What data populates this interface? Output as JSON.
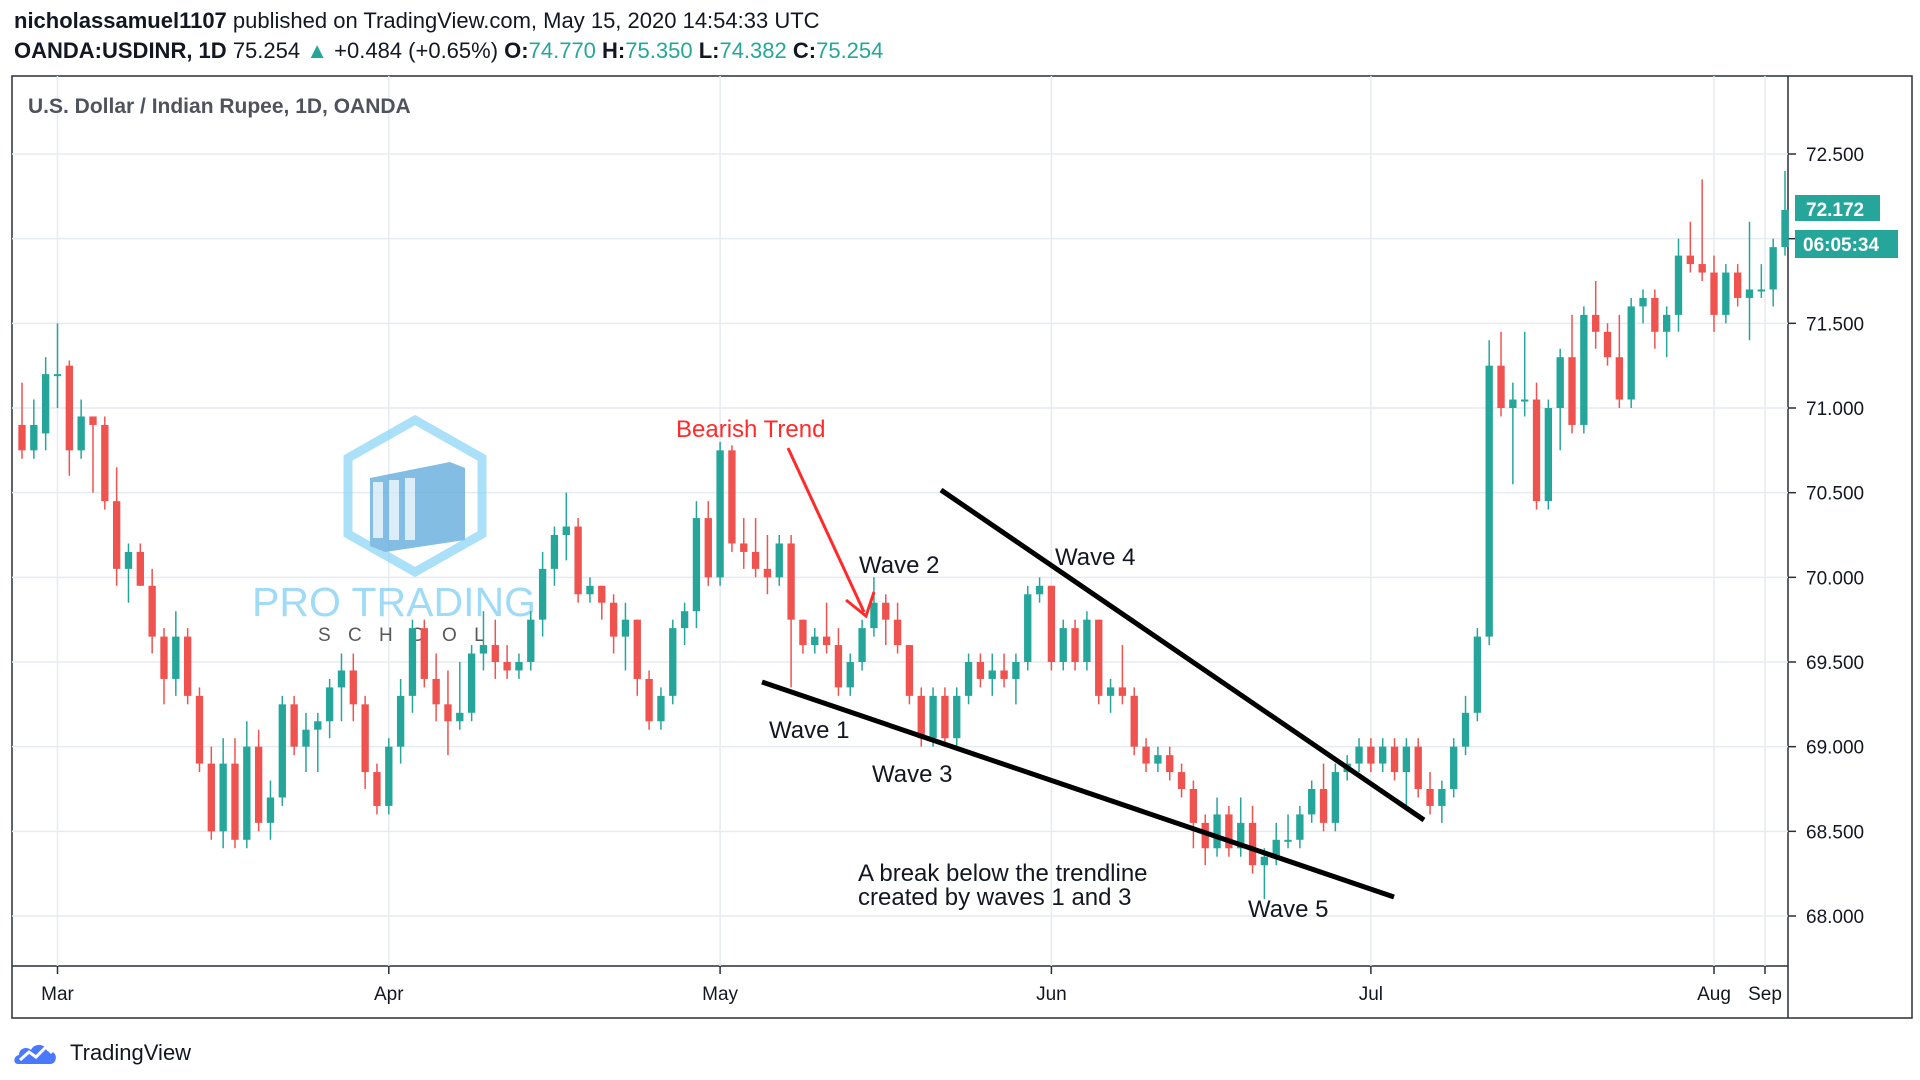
{
  "header": {
    "publisher": "nicholassamuel1107",
    "published_text": "published on TradingView.com, May 15, 2020 14:54:33 UTC",
    "symbol": "OANDA:USDINR, 1D",
    "last": "75.254",
    "change": "+0.484 (+0.65%)",
    "o_label": "O:",
    "o_value": "74.770",
    "h_label": "H:",
    "h_value": "75.350",
    "l_label": "L:",
    "l_value": "74.382",
    "c_label": "C:",
    "c_value": "75.254"
  },
  "colors": {
    "up": "#26a69a",
    "down": "#ef5350",
    "grid": "#e6ebf2",
    "annotation": "#ff2a2a",
    "trendline": "#000000",
    "watermark": "#7fd0f5"
  },
  "watermark": {
    "line1": "PRO TRADING",
    "line2": "S C H O O L"
  },
  "footer": {
    "brand": "TradingView",
    "icon": "tradingview-cloud-icon"
  },
  "chart_data": {
    "type": "candlestick",
    "title": "U.S. Dollar / Indian Rupee, 1D, OANDA",
    "x_tick_labels": [
      "Mar",
      "Apr",
      "May",
      "Jun",
      "Jul",
      "Aug",
      "Sep"
    ],
    "y_tick_labels": [
      "72.500",
      "72.000",
      "71.500",
      "71.000",
      "70.500",
      "70.000",
      "69.500",
      "69.000",
      "68.500",
      "68.000"
    ],
    "ylim": [
      67.7,
      72.95
    ],
    "last_price_label": "72.172",
    "countdown_label": "06:05:34",
    "candles": [
      {
        "o": 70.9,
        "h": 71.15,
        "l": 70.7,
        "c": 70.75
      },
      {
        "o": 70.75,
        "h": 71.05,
        "l": 70.7,
        "c": 70.9
      },
      {
        "o": 70.85,
        "h": 71.3,
        "l": 70.75,
        "c": 71.2
      },
      {
        "o": 71.2,
        "h": 71.5,
        "l": 71.0,
        "c": 71.2
      },
      {
        "o": 71.25,
        "h": 71.28,
        "l": 70.6,
        "c": 70.75
      },
      {
        "o": 70.75,
        "h": 71.05,
        "l": 70.7,
        "c": 70.95
      },
      {
        "o": 70.95,
        "h": 70.95,
        "l": 70.5,
        "c": 70.9
      },
      {
        "o": 70.9,
        "h": 70.95,
        "l": 70.4,
        "c": 70.45
      },
      {
        "o": 70.45,
        "h": 70.65,
        "l": 69.95,
        "c": 70.05
      },
      {
        "o": 70.05,
        "h": 70.2,
        "l": 69.85,
        "c": 70.15
      },
      {
        "o": 70.15,
        "h": 70.2,
        "l": 69.95,
        "c": 69.95
      },
      {
        "o": 69.95,
        "h": 70.05,
        "l": 69.55,
        "c": 69.65
      },
      {
        "o": 69.65,
        "h": 69.7,
        "l": 69.25,
        "c": 69.4
      },
      {
        "o": 69.4,
        "h": 69.8,
        "l": 69.3,
        "c": 69.65
      },
      {
        "o": 69.65,
        "h": 69.7,
        "l": 69.25,
        "c": 69.3
      },
      {
        "o": 69.3,
        "h": 69.35,
        "l": 68.85,
        "c": 68.9
      },
      {
        "o": 68.9,
        "h": 69.0,
        "l": 68.45,
        "c": 68.5
      },
      {
        "o": 68.5,
        "h": 69.05,
        "l": 68.4,
        "c": 68.9
      },
      {
        "o": 68.9,
        "h": 69.05,
        "l": 68.4,
        "c": 68.45
      },
      {
        "o": 68.45,
        "h": 69.15,
        "l": 68.4,
        "c": 69.0
      },
      {
        "o": 69.0,
        "h": 69.1,
        "l": 68.5,
        "c": 68.55
      },
      {
        "o": 68.55,
        "h": 68.8,
        "l": 68.45,
        "c": 68.7
      },
      {
        "o": 68.7,
        "h": 69.3,
        "l": 68.65,
        "c": 69.25
      },
      {
        "o": 69.25,
        "h": 69.3,
        "l": 68.95,
        "c": 69.0
      },
      {
        "o": 69.0,
        "h": 69.2,
        "l": 68.85,
        "c": 69.1
      },
      {
        "o": 69.1,
        "h": 69.2,
        "l": 68.85,
        "c": 69.15
      },
      {
        "o": 69.15,
        "h": 69.4,
        "l": 69.05,
        "c": 69.35
      },
      {
        "o": 69.35,
        "h": 69.55,
        "l": 69.15,
        "c": 69.45
      },
      {
        "o": 69.45,
        "h": 69.55,
        "l": 69.15,
        "c": 69.25
      },
      {
        "o": 69.25,
        "h": 69.3,
        "l": 68.75,
        "c": 68.85
      },
      {
        "o": 68.85,
        "h": 68.9,
        "l": 68.6,
        "c": 68.65
      },
      {
        "o": 68.65,
        "h": 69.05,
        "l": 68.6,
        "c": 69.0
      },
      {
        "o": 69.0,
        "h": 69.4,
        "l": 68.9,
        "c": 69.3
      },
      {
        "o": 69.3,
        "h": 69.75,
        "l": 69.2,
        "c": 69.7
      },
      {
        "o": 69.7,
        "h": 69.75,
        "l": 69.35,
        "c": 69.4
      },
      {
        "o": 69.4,
        "h": 69.55,
        "l": 69.15,
        "c": 69.25
      },
      {
        "o": 69.25,
        "h": 69.45,
        "l": 68.95,
        "c": 69.15
      },
      {
        "o": 69.15,
        "h": 69.5,
        "l": 69.1,
        "c": 69.2
      },
      {
        "o": 69.2,
        "h": 69.6,
        "l": 69.15,
        "c": 69.55
      },
      {
        "o": 69.55,
        "h": 69.8,
        "l": 69.45,
        "c": 69.6
      },
      {
        "o": 69.6,
        "h": 69.75,
        "l": 69.4,
        "c": 69.5
      },
      {
        "o": 69.5,
        "h": 69.6,
        "l": 69.4,
        "c": 69.45
      },
      {
        "o": 69.45,
        "h": 69.55,
        "l": 69.4,
        "c": 69.5
      },
      {
        "o": 69.5,
        "h": 69.8,
        "l": 69.45,
        "c": 69.75
      },
      {
        "o": 69.75,
        "h": 70.15,
        "l": 69.65,
        "c": 70.05
      },
      {
        "o": 70.05,
        "h": 70.3,
        "l": 69.95,
        "c": 70.25
      },
      {
        "o": 70.25,
        "h": 70.5,
        "l": 70.1,
        "c": 70.3
      },
      {
        "o": 70.3,
        "h": 70.35,
        "l": 69.85,
        "c": 69.9
      },
      {
        "o": 69.9,
        "h": 70.0,
        "l": 69.85,
        "c": 69.95
      },
      {
        "o": 69.95,
        "h": 69.95,
        "l": 69.75,
        "c": 69.85
      },
      {
        "o": 69.85,
        "h": 69.9,
        "l": 69.55,
        "c": 69.65
      },
      {
        "o": 69.65,
        "h": 69.85,
        "l": 69.45,
        "c": 69.75
      },
      {
        "o": 69.75,
        "h": 69.75,
        "l": 69.3,
        "c": 69.4
      },
      {
        "o": 69.4,
        "h": 69.45,
        "l": 69.1,
        "c": 69.15
      },
      {
        "o": 69.15,
        "h": 69.35,
        "l": 69.1,
        "c": 69.3
      },
      {
        "o": 69.3,
        "h": 69.75,
        "l": 69.25,
        "c": 69.7
      },
      {
        "o": 69.7,
        "h": 69.85,
        "l": 69.6,
        "c": 69.8
      },
      {
        "o": 69.8,
        "h": 70.45,
        "l": 69.7,
        "c": 70.35
      },
      {
        "o": 70.35,
        "h": 70.45,
        "l": 69.95,
        "c": 70.0
      },
      {
        "o": 70.0,
        "h": 70.8,
        "l": 69.95,
        "c": 70.75
      },
      {
        "o": 70.75,
        "h": 70.78,
        "l": 70.15,
        "c": 70.2
      },
      {
        "o": 70.2,
        "h": 70.35,
        "l": 70.05,
        "c": 70.15
      },
      {
        "o": 70.15,
        "h": 70.35,
        "l": 70.0,
        "c": 70.05
      },
      {
        "o": 70.05,
        "h": 70.25,
        "l": 69.9,
        "c": 70.0
      },
      {
        "o": 70.0,
        "h": 70.25,
        "l": 69.95,
        "c": 70.2
      },
      {
        "o": 70.2,
        "h": 70.25,
        "l": 69.35,
        "c": 69.75
      },
      {
        "o": 69.75,
        "h": 69.75,
        "l": 69.55,
        "c": 69.6
      },
      {
        "o": 69.6,
        "h": 69.7,
        "l": 69.55,
        "c": 69.65
      },
      {
        "o": 69.65,
        "h": 69.85,
        "l": 69.55,
        "c": 69.6
      },
      {
        "o": 69.6,
        "h": 69.7,
        "l": 69.3,
        "c": 69.35
      },
      {
        "o": 69.35,
        "h": 69.55,
        "l": 69.3,
        "c": 69.5
      },
      {
        "o": 69.5,
        "h": 69.75,
        "l": 69.45,
        "c": 69.7
      },
      {
        "o": 69.7,
        "h": 70.0,
        "l": 69.65,
        "c": 69.85
      },
      {
        "o": 69.85,
        "h": 69.9,
        "l": 69.6,
        "c": 69.75
      },
      {
        "o": 69.75,
        "h": 69.85,
        "l": 69.55,
        "c": 69.6
      },
      {
        "o": 69.6,
        "h": 69.6,
        "l": 69.25,
        "c": 69.3
      },
      {
        "o": 69.3,
        "h": 69.35,
        "l": 69.0,
        "c": 69.05
      },
      {
        "o": 69.05,
        "h": 69.35,
        "l": 69.0,
        "c": 69.3
      },
      {
        "o": 69.3,
        "h": 69.35,
        "l": 69.0,
        "c": 69.05
      },
      {
        "o": 69.05,
        "h": 69.35,
        "l": 69.0,
        "c": 69.3
      },
      {
        "o": 69.3,
        "h": 69.55,
        "l": 69.25,
        "c": 69.5
      },
      {
        "o": 69.5,
        "h": 69.55,
        "l": 69.35,
        "c": 69.4
      },
      {
        "o": 69.4,
        "h": 69.55,
        "l": 69.3,
        "c": 69.45
      },
      {
        "o": 69.45,
        "h": 69.55,
        "l": 69.35,
        "c": 69.4
      },
      {
        "o": 69.4,
        "h": 69.55,
        "l": 69.25,
        "c": 69.5
      },
      {
        "o": 69.5,
        "h": 69.95,
        "l": 69.45,
        "c": 69.9
      },
      {
        "o": 69.9,
        "h": 70.0,
        "l": 69.85,
        "c": 69.95
      },
      {
        "o": 69.95,
        "h": 69.95,
        "l": 69.45,
        "c": 69.5
      },
      {
        "o": 69.5,
        "h": 69.75,
        "l": 69.45,
        "c": 69.7
      },
      {
        "o": 69.7,
        "h": 69.75,
        "l": 69.45,
        "c": 69.5
      },
      {
        "o": 69.5,
        "h": 69.8,
        "l": 69.45,
        "c": 69.75
      },
      {
        "o": 69.75,
        "h": 69.75,
        "l": 69.25,
        "c": 69.3
      },
      {
        "o": 69.3,
        "h": 69.4,
        "l": 69.2,
        "c": 69.35
      },
      {
        "o": 69.35,
        "h": 69.6,
        "l": 69.25,
        "c": 69.3
      },
      {
        "o": 69.3,
        "h": 69.35,
        "l": 68.95,
        "c": 69.0
      },
      {
        "o": 69.0,
        "h": 69.05,
        "l": 68.85,
        "c": 68.9
      },
      {
        "o": 68.9,
        "h": 69.0,
        "l": 68.85,
        "c": 68.95
      },
      {
        "o": 68.95,
        "h": 69.0,
        "l": 68.8,
        "c": 68.85
      },
      {
        "o": 68.85,
        "h": 68.9,
        "l": 68.7,
        "c": 68.75
      },
      {
        "o": 68.75,
        "h": 68.8,
        "l": 68.4,
        "c": 68.55
      },
      {
        "o": 68.55,
        "h": 68.6,
        "l": 68.3,
        "c": 68.4
      },
      {
        "o": 68.4,
        "h": 68.7,
        "l": 68.35,
        "c": 68.6
      },
      {
        "o": 68.6,
        "h": 68.65,
        "l": 68.35,
        "c": 68.4
      },
      {
        "o": 68.4,
        "h": 68.7,
        "l": 68.35,
        "c": 68.55
      },
      {
        "o": 68.55,
        "h": 68.65,
        "l": 68.25,
        "c": 68.3
      },
      {
        "o": 68.3,
        "h": 68.4,
        "l": 68.1,
        "c": 68.35
      },
      {
        "o": 68.35,
        "h": 68.55,
        "l": 68.3,
        "c": 68.45
      },
      {
        "o": 68.45,
        "h": 68.6,
        "l": 68.4,
        "c": 68.45
      },
      {
        "o": 68.45,
        "h": 68.65,
        "l": 68.4,
        "c": 68.6
      },
      {
        "o": 68.6,
        "h": 68.8,
        "l": 68.55,
        "c": 68.75
      },
      {
        "o": 68.75,
        "h": 68.9,
        "l": 68.5,
        "c": 68.55
      },
      {
        "o": 68.55,
        "h": 68.9,
        "l": 68.5,
        "c": 68.85
      },
      {
        "o": 68.85,
        "h": 68.95,
        "l": 68.8,
        "c": 68.9
      },
      {
        "o": 68.9,
        "h": 69.05,
        "l": 68.85,
        "c": 69.0
      },
      {
        "o": 69.0,
        "h": 69.05,
        "l": 68.85,
        "c": 68.9
      },
      {
        "o": 68.9,
        "h": 69.05,
        "l": 68.85,
        "c": 69.0
      },
      {
        "o": 69.0,
        "h": 69.05,
        "l": 68.8,
        "c": 68.85
      },
      {
        "o": 68.85,
        "h": 69.05,
        "l": 68.65,
        "c": 69.0
      },
      {
        "o": 69.0,
        "h": 69.05,
        "l": 68.7,
        "c": 68.75
      },
      {
        "o": 68.75,
        "h": 68.85,
        "l": 68.6,
        "c": 68.65
      },
      {
        "o": 68.65,
        "h": 68.8,
        "l": 68.55,
        "c": 68.75
      },
      {
        "o": 68.75,
        "h": 69.05,
        "l": 68.7,
        "c": 69.0
      },
      {
        "o": 69.0,
        "h": 69.3,
        "l": 68.95,
        "c": 69.2
      },
      {
        "o": 69.2,
        "h": 69.7,
        "l": 69.15,
        "c": 69.65
      },
      {
        "o": 69.65,
        "h": 71.4,
        "l": 69.6,
        "c": 71.25
      },
      {
        "o": 71.25,
        "h": 71.45,
        "l": 70.95,
        "c": 71.0
      },
      {
        "o": 71.0,
        "h": 71.15,
        "l": 70.55,
        "c": 71.05
      },
      {
        "o": 71.05,
        "h": 71.45,
        "l": 70.95,
        "c": 71.05
      },
      {
        "o": 71.05,
        "h": 71.15,
        "l": 70.4,
        "c": 70.45
      },
      {
        "o": 70.45,
        "h": 71.05,
        "l": 70.4,
        "c": 71.0
      },
      {
        "o": 71.0,
        "h": 71.35,
        "l": 70.75,
        "c": 71.3
      },
      {
        "o": 71.3,
        "h": 71.55,
        "l": 70.85,
        "c": 70.9
      },
      {
        "o": 70.9,
        "h": 71.6,
        "l": 70.85,
        "c": 71.55
      },
      {
        "o": 71.55,
        "h": 71.75,
        "l": 71.35,
        "c": 71.45
      },
      {
        "o": 71.45,
        "h": 71.5,
        "l": 71.25,
        "c": 71.3
      },
      {
        "o": 71.3,
        "h": 71.55,
        "l": 71.0,
        "c": 71.05
      },
      {
        "o": 71.05,
        "h": 71.65,
        "l": 71.0,
        "c": 71.6
      },
      {
        "o": 71.6,
        "h": 71.7,
        "l": 71.5,
        "c": 71.65
      },
      {
        "o": 71.65,
        "h": 71.7,
        "l": 71.35,
        "c": 71.45
      },
      {
        "o": 71.45,
        "h": 71.6,
        "l": 71.3,
        "c": 71.55
      },
      {
        "o": 71.55,
        "h": 72.0,
        "l": 71.45,
        "c": 71.9
      },
      {
        "o": 71.9,
        "h": 72.1,
        "l": 71.8,
        "c": 71.85
      },
      {
        "o": 71.85,
        "h": 72.35,
        "l": 71.75,
        "c": 71.8
      },
      {
        "o": 71.8,
        "h": 71.9,
        "l": 71.45,
        "c": 71.55
      },
      {
        "o": 71.55,
        "h": 71.85,
        "l": 71.5,
        "c": 71.8
      },
      {
        "o": 71.8,
        "h": 71.85,
        "l": 71.6,
        "c": 71.65
      },
      {
        "o": 71.65,
        "h": 72.1,
        "l": 71.4,
        "c": 71.7
      },
      {
        "o": 71.7,
        "h": 71.85,
        "l": 71.65,
        "c": 71.7
      },
      {
        "o": 71.7,
        "h": 72.0,
        "l": 71.6,
        "c": 71.95
      },
      {
        "o": 71.95,
        "h": 72.4,
        "l": 71.9,
        "c": 72.17
      }
    ]
  },
  "annotations": {
    "bearish_trend": "Bearish Trend",
    "wave1": "Wave 1",
    "wave2": "Wave 2",
    "wave3": "Wave 3",
    "wave4": "Wave 4",
    "wave5": "Wave 5",
    "break_line1": "A break below the trendline",
    "break_line2": "created by waves 1 and 3"
  }
}
